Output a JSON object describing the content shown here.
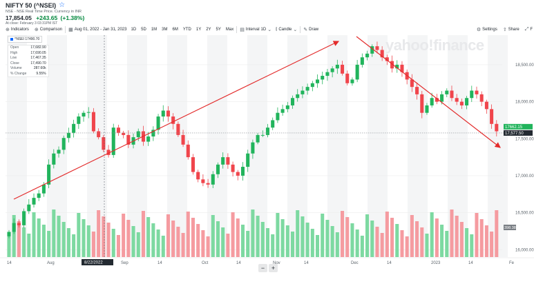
{
  "header": {
    "title": "NIFTY 50 (^NSEI)",
    "star_icon": "star-outline-icon",
    "subtitle": "NSE - NSE Real Time Price. Currency in INR",
    "price": "17,854.05",
    "change": "+243.65",
    "change_pct": "(+1.38%)",
    "as_of": "At close: February 3 03:31PM IST"
  },
  "toolbar": {
    "indicators": "Indicators",
    "comparison": "Comparison",
    "date_range": "Aug 01, 2022 - Jan 31, 2023",
    "ranges": [
      "1D",
      "5D",
      "1M",
      "3M",
      "6M",
      "YTD",
      "1Y",
      "2Y",
      "5Y",
      "Max"
    ],
    "interval_label": "Interval",
    "interval_value": "1D",
    "chart_type": "Candle",
    "draw": "Draw",
    "settings": "Settings",
    "share": "Share",
    "fullscreen": "F"
  },
  "ohlc_box": {
    "chip": "^NSEI 17490.70",
    "rows": [
      {
        "label": "Open",
        "value": "17,682.90"
      },
      {
        "label": "High",
        "value": "17,690.05"
      },
      {
        "label": "Low",
        "value": "17,467.35"
      },
      {
        "label": "Close",
        "value": "17,490.70"
      },
      {
        "label": "Volume",
        "value": "287.60k"
      },
      {
        "label": "% Change",
        "value": "9.55%"
      }
    ]
  },
  "watermark": "yahoo!finance",
  "zoom": {
    "minus": "−",
    "plus": "+"
  },
  "colors": {
    "up": "#21b45c",
    "down": "#f0454c",
    "volume_up": "#7dd9a1",
    "volume_down": "#f59ba0",
    "trend": "#e32b2b",
    "accent": "#0f69ff"
  },
  "chart_data": {
    "type": "candlestick",
    "x_ticks": [
      "14",
      "Aug",
      "8/22/2022",
      "Sep",
      "14",
      "Oct",
      "14",
      "Nov",
      "14",
      "Dec",
      "14",
      "2023",
      "14",
      "Fe"
    ],
    "y_ticks": [
      "18,500.00",
      "18,000.00",
      "17,500.00",
      "17,000.00",
      "16,500.00",
      "16,000.00"
    ],
    "ylim": [
      15900,
      18900
    ],
    "price_tags": [
      {
        "value": 17662.15,
        "label": "17662.15",
        "color": "#21b45c"
      },
      {
        "value": 17577.5,
        "label": "17,577.50",
        "color": "#232a31"
      }
    ],
    "volume_tag": "398.38k",
    "closes": [
      16240,
      16360,
      16330,
      16520,
      16610,
      16700,
      16760,
      16880,
      17150,
      17300,
      17350,
      17510,
      17580,
      17700,
      17800,
      17850,
      17860,
      17600,
      17520,
      17350,
      17280,
      17650,
      17580,
      17550,
      17420,
      17520,
      17600,
      17460,
      17530,
      17620,
      17800,
      17880,
      17800,
      17700,
      17550,
      17420,
      17250,
      17050,
      16950,
      16900,
      16880,
      17020,
      17150,
      17250,
      17150,
      17050,
      17000,
      17120,
      17300,
      17450,
      17550,
      17550,
      17650,
      17750,
      17850,
      17900,
      17950,
      18050,
      18100,
      18150,
      18200,
      18250,
      18300,
      18350,
      18400,
      18450,
      18500,
      18380,
      18250,
      18300,
      18500,
      18600,
      18650,
      18750,
      18700,
      18600,
      18550,
      18450,
      18500,
      18400,
      18300,
      18200,
      18100,
      17850,
      17950,
      18050,
      18000,
      18100,
      18150,
      18050,
      18000,
      17950,
      18050,
      18150,
      18100,
      18000,
      17900,
      17700,
      17600
    ]
  }
}
